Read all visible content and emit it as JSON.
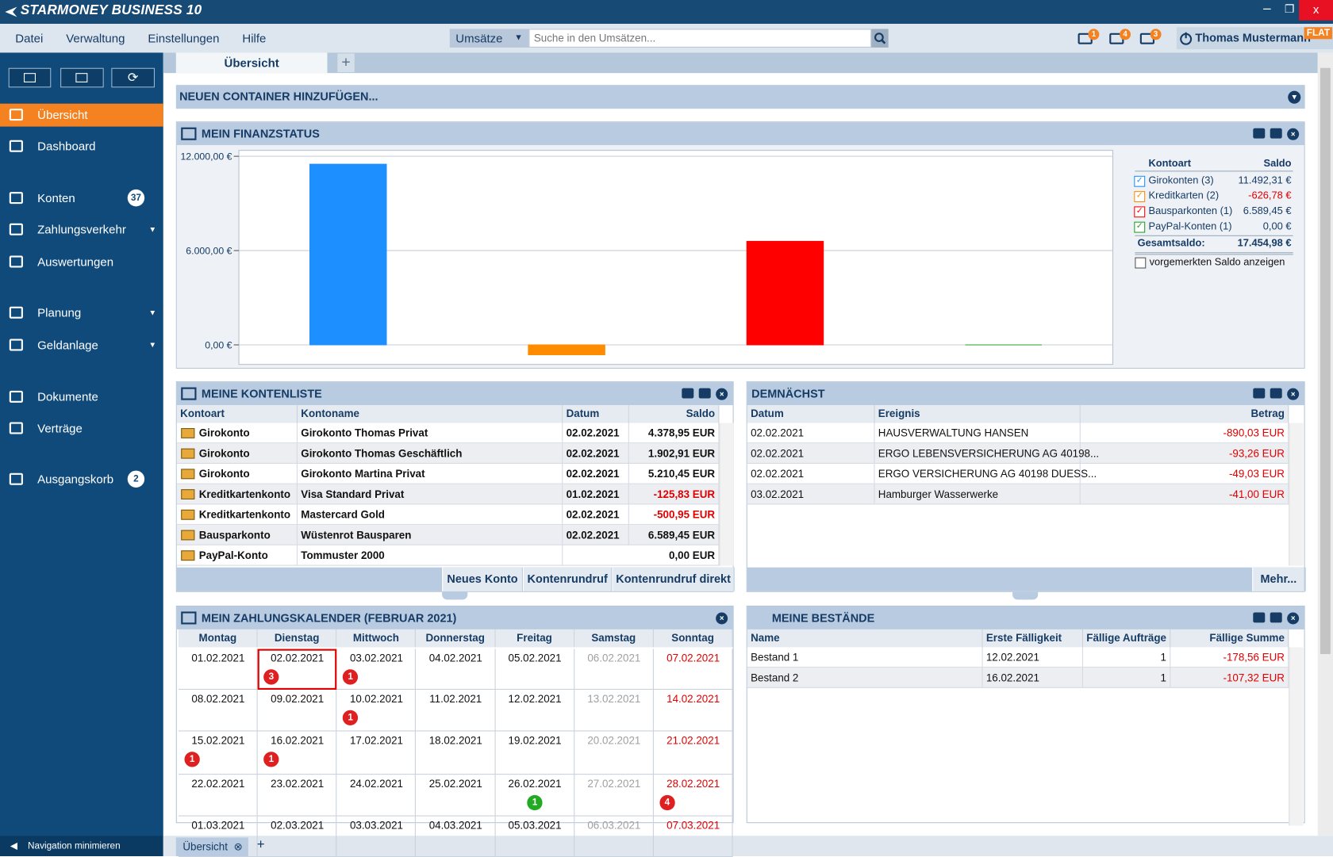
{
  "window": {
    "title": "STARMONEY BUSINESS 10"
  },
  "menu": [
    "Datei",
    "Verwaltung",
    "Einstellungen",
    "Hilfe"
  ],
  "search": {
    "scope": "Umsätze",
    "placeholder": "Suche in den Umsätzen..."
  },
  "notifications": [
    1,
    4,
    3
  ],
  "user": {
    "name": "Thomas Mustermann",
    "plan": "FLAT"
  },
  "sidebar": {
    "items": [
      {
        "label": "Übersicht",
        "active": true
      },
      {
        "label": "Dashboard"
      },
      {
        "label": "Konten",
        "badge": 37
      },
      {
        "label": "Zahlungsverkehr",
        "submenu": true
      },
      {
        "label": "Auswertungen"
      },
      {
        "label": "Planung",
        "submenu": true
      },
      {
        "label": "Geldanlage",
        "submenu": true
      },
      {
        "label": "Dokumente"
      },
      {
        "label": "Verträge"
      },
      {
        "label": "Ausgangskorb",
        "badge": 2
      }
    ],
    "minimize": "Navigation minimieren"
  },
  "tabs": {
    "active": "Übersicht",
    "bottom": "Übersicht"
  },
  "add_container": "NEUEN CONTAINER HINZUFÜGEN...",
  "chart_data": {
    "type": "bar",
    "title": "MEIN FINANZSTATUS",
    "categories": [
      "Girokonten (3)",
      "Kreditkarten (2)",
      "Bausparkonten (1)",
      "PayPal-Konten (1)"
    ],
    "values": [
      11492.31,
      -626.78,
      6589.45,
      0
    ],
    "value_labels": [
      "11.492,31 €",
      "-626,78 €",
      "6.589,45 €",
      "0,00 €"
    ],
    "colors": [
      "#1e8fff",
      "#ff8c00",
      "#ff0000",
      "#22a022"
    ],
    "ylim": [
      -1243,
      12378
    ],
    "yticks": [
      {
        "value": 0,
        "label": "0,00 €"
      },
      {
        "value": 6000,
        "label": "6.000,00 €"
      },
      {
        "value": 12000,
        "label": "12.000,00 €"
      }
    ],
    "grid": true,
    "legend_headers": [
      "Kontoart",
      "Saldo"
    ],
    "total": {
      "label": "Gesamtsaldo:",
      "value": "17.454,98 €"
    },
    "option": "vorgemerkten Saldo anzeigen"
  },
  "kontenliste": {
    "title": "MEINE KONTENLISTE",
    "columns": [
      "Kontoart",
      "Kontoname",
      "Datum",
      "Saldo"
    ],
    "rows": [
      [
        "Girokonto",
        "Girokonto Thomas Privat",
        "02.02.2021",
        "4.378,95 EUR"
      ],
      [
        "Girokonto",
        "Girokonto Thomas Geschäftlich",
        "02.02.2021",
        "1.902,91 EUR"
      ],
      [
        "Girokonto",
        "Girokonto Martina Privat",
        "02.02.2021",
        "5.210,45 EUR"
      ],
      [
        "Kreditkartenkonto",
        "Visa Standard Privat",
        "01.02.2021",
        "-125,83 EUR"
      ],
      [
        "Kreditkartenkonto",
        "Mastercard Gold",
        "02.02.2021",
        "-500,95 EUR"
      ],
      [
        "Bausparkonto",
        "Wüstenrot Bausparen",
        "02.02.2021",
        "6.589,45 EUR"
      ],
      [
        "PayPal-Konto",
        "Tommuster 2000",
        null,
        "0,00 EUR"
      ]
    ],
    "buttons": [
      "Neues Konto",
      "Kontenrundruf",
      "Kontenrundruf direkt"
    ]
  },
  "demnaechst": {
    "title": "DEMNÄCHST",
    "columns": [
      "Datum",
      "Ereignis",
      "Betrag"
    ],
    "rows": [
      [
        "02.02.2021",
        "HAUSVERWALTUNG HANSEN",
        "-890,03 EUR"
      ],
      [
        "02.02.2021",
        "ERGO LEBENSVERSICHERUNG AG 40198...",
        "-93,26 EUR"
      ],
      [
        "02.02.2021",
        "ERGO VERSICHERUNG AG 40198 DUESS...",
        "-49,03 EUR"
      ],
      [
        "03.02.2021",
        "Hamburger Wasserwerke",
        "-41,00 EUR"
      ]
    ],
    "button": "Mehr..."
  },
  "kalender": {
    "title": "MEIN ZAHLUNGSKALENDER (FEBRUAR 2021)",
    "days": [
      "Montag",
      "Dienstag",
      "Mittwoch",
      "Donnerstag",
      "Freitag",
      "Samstag",
      "Sonntag"
    ],
    "weeks": [
      [
        {
          "date": "01.02.2021"
        },
        {
          "date": "02.02.2021",
          "count": 3,
          "color": "#e02020",
          "selected": true
        },
        {
          "date": "03.02.2021",
          "count": 1,
          "color": "#e02020"
        },
        {
          "date": "04.02.2021"
        },
        {
          "date": "05.02.2021"
        },
        {
          "date": "06.02.2021"
        },
        {
          "date": "07.02.2021"
        }
      ],
      [
        {
          "date": "08.02.2021"
        },
        {
          "date": "09.02.2021"
        },
        {
          "date": "10.02.2021",
          "count": 1,
          "color": "#e02020"
        },
        {
          "date": "11.02.2021"
        },
        {
          "date": "12.02.2021"
        },
        {
          "date": "13.02.2021"
        },
        {
          "date": "14.02.2021"
        }
      ],
      [
        {
          "date": "15.02.2021",
          "count": 1,
          "color": "#e02020"
        },
        {
          "date": "16.02.2021",
          "count": 1,
          "color": "#e02020"
        },
        {
          "date": "17.02.2021"
        },
        {
          "date": "18.02.2021"
        },
        {
          "date": "19.02.2021"
        },
        {
          "date": "20.02.2021"
        },
        {
          "date": "21.02.2021"
        }
      ],
      [
        {
          "date": "22.02.2021"
        },
        {
          "date": "23.02.2021"
        },
        {
          "date": "24.02.2021"
        },
        {
          "date": "25.02.2021"
        },
        {
          "date": "26.02.2021",
          "count": 1,
          "color": "#22aa22"
        },
        {
          "date": "27.02.2021"
        },
        {
          "date": "28.02.2021",
          "count": 4,
          "color": "#e02020"
        }
      ],
      [
        {
          "date": "01.03.2021"
        },
        {
          "date": "02.03.2021"
        },
        {
          "date": "03.03.2021"
        },
        {
          "date": "04.03.2021"
        },
        {
          "date": "05.03.2021"
        },
        {
          "date": "06.03.2021"
        },
        {
          "date": "07.03.2021"
        }
      ]
    ]
  },
  "bestaende": {
    "title": "MEINE BESTÄNDE",
    "columns": [
      "Name",
      "Erste Fälligkeit",
      "Fällige Aufträge",
      "Fällige Summe"
    ],
    "rows": [
      [
        "Bestand 1",
        "12.02.2021",
        1,
        "-178,56 EUR"
      ],
      [
        "Bestand 2",
        "16.02.2021",
        1,
        "-107,32 EUR"
      ]
    ]
  }
}
